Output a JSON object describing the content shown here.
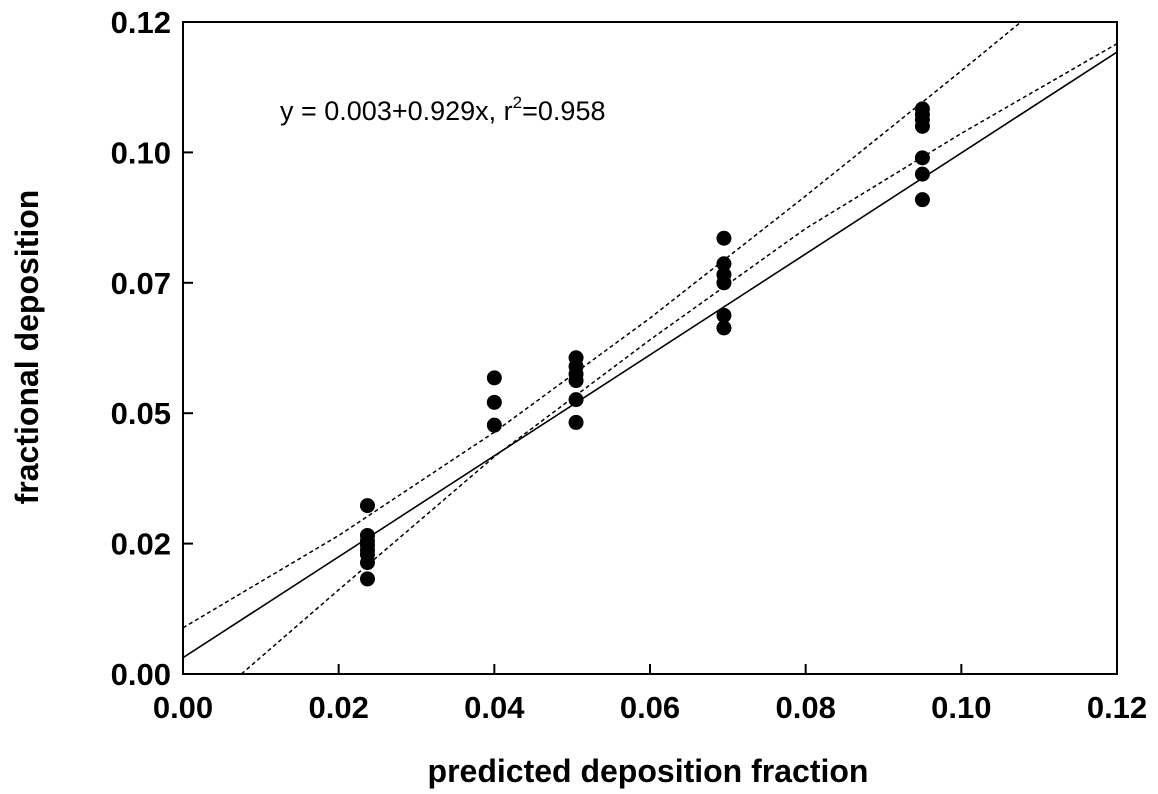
{
  "chart_data": {
    "type": "scatter",
    "title": "",
    "xlabel": "predicted deposition fraction",
    "ylabel": "fractional deposition",
    "xlim": [
      0,
      0.12
    ],
    "ylim": [
      0,
      0.12
    ],
    "x_ticks": [
      0,
      0.02,
      0.04,
      0.06,
      0.08,
      0.1,
      0.12
    ],
    "x_tick_labels": [
      "0.00",
      "0.02",
      "0.04",
      "0.06",
      "0.08",
      "0.10",
      "0.12"
    ],
    "y_ticks": [
      0,
      0.024,
      0.048,
      0.072,
      0.096,
      0.12
    ],
    "y_tick_labels": [
      "0.00",
      "0.02",
      "0.05",
      "0.07",
      "0.10",
      "0.12"
    ],
    "grid": false,
    "annotation": {
      "prefix": "y = 0.003+0.929x, r",
      "superscript": "2",
      "suffix": "=0.958"
    },
    "points": [
      {
        "x": 0.0237,
        "y": 0.031
      },
      {
        "x": 0.0237,
        "y": 0.0255
      },
      {
        "x": 0.0237,
        "y": 0.0245
      },
      {
        "x": 0.0237,
        "y": 0.0237
      },
      {
        "x": 0.0237,
        "y": 0.0228
      },
      {
        "x": 0.0237,
        "y": 0.022
      },
      {
        "x": 0.0237,
        "y": 0.0205
      },
      {
        "x": 0.0237,
        "y": 0.0175
      },
      {
        "x": 0.04,
        "y": 0.0545
      },
      {
        "x": 0.04,
        "y": 0.05
      },
      {
        "x": 0.04,
        "y": 0.0458
      },
      {
        "x": 0.0505,
        "y": 0.0582
      },
      {
        "x": 0.0505,
        "y": 0.0566
      },
      {
        "x": 0.0505,
        "y": 0.0552
      },
      {
        "x": 0.0505,
        "y": 0.054
      },
      {
        "x": 0.0505,
        "y": 0.0505
      },
      {
        "x": 0.0505,
        "y": 0.0463
      },
      {
        "x": 0.0695,
        "y": 0.0802
      },
      {
        "x": 0.0695,
        "y": 0.0755
      },
      {
        "x": 0.0695,
        "y": 0.0735
      },
      {
        "x": 0.0695,
        "y": 0.072
      },
      {
        "x": 0.0695,
        "y": 0.066
      },
      {
        "x": 0.0695,
        "y": 0.0637
      },
      {
        "x": 0.095,
        "y": 0.104
      },
      {
        "x": 0.095,
        "y": 0.103
      },
      {
        "x": 0.095,
        "y": 0.102
      },
      {
        "x": 0.095,
        "y": 0.1008
      },
      {
        "x": 0.095,
        "y": 0.095
      },
      {
        "x": 0.095,
        "y": 0.092
      },
      {
        "x": 0.095,
        "y": 0.0873
      }
    ],
    "fit_line": {
      "intercept": 0.003,
      "slope": 0.929,
      "style": "solid"
    },
    "confidence_upper": {
      "style": "dotted",
      "points": [
        [
          0,
          0.0085
        ],
        [
          0.02,
          0.0255
        ],
        [
          0.04,
          0.0445
        ],
        [
          0.06,
          0.0655
        ],
        [
          0.08,
          0.088
        ],
        [
          0.1,
          0.111
        ],
        [
          0.12,
          0.1345
        ]
      ]
    },
    "confidence_lower": {
      "style": "dotted",
      "points": [
        [
          0.0075,
          0
        ],
        [
          0.02,
          0.0155
        ],
        [
          0.04,
          0.04
        ],
        [
          0.06,
          0.0615
        ],
        [
          0.08,
          0.082
        ],
        [
          0.1,
          0.0995
        ],
        [
          0.12,
          0.116
        ]
      ]
    }
  }
}
